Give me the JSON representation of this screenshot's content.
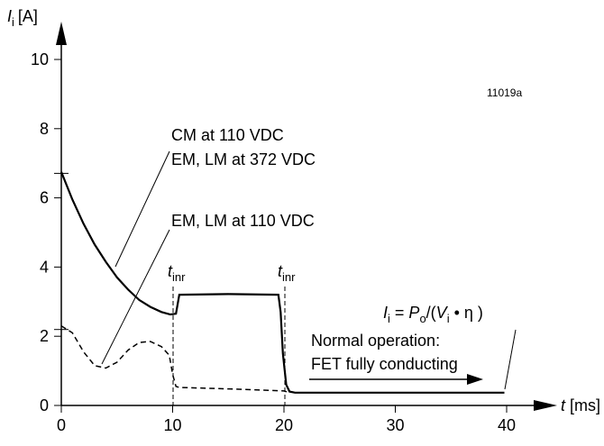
{
  "figure_id": "11019a",
  "chart_data": {
    "type": "line",
    "y_axis": {
      "symbol": "I",
      "subscript": "i",
      "unit": "[A]",
      "range": [
        0,
        10
      ],
      "ticks": [
        0,
        2,
        4,
        6,
        8,
        10
      ],
      "tick_labels": [
        "0",
        "2",
        "4",
        "6",
        "8",
        "10"
      ]
    },
    "x_axis": {
      "symbol": "t",
      "unit": "[ms]",
      "range": [
        0,
        40
      ],
      "ticks": [
        0,
        10,
        20,
        30,
        40
      ],
      "tick_labels": [
        "0",
        "10",
        "20",
        "30",
        "40"
      ]
    },
    "grid": false,
    "series": [
      {
        "style": "solid",
        "x": [
          0,
          1,
          2,
          3,
          4,
          5,
          6,
          7,
          8,
          9,
          9.8,
          10.3,
          10.6,
          15,
          19.5,
          19.7,
          19.9,
          20.2,
          20.5,
          21,
          25,
          30,
          35,
          39.8
        ],
        "y": [
          6.75,
          5.95,
          5.25,
          4.65,
          4.15,
          3.7,
          3.35,
          3.05,
          2.85,
          2.7,
          2.63,
          2.65,
          3.2,
          3.22,
          3.2,
          2.7,
          1.5,
          0.6,
          0.4,
          0.37,
          0.37,
          0.37,
          0.37,
          0.37
        ]
      },
      {
        "style": "dashed",
        "x": [
          0,
          1,
          2,
          3,
          4,
          5,
          6,
          7,
          8,
          9,
          9.7,
          10.0,
          10.3,
          10.6,
          15,
          20,
          20.5
        ],
        "y": [
          2.3,
          2.1,
          1.55,
          1.15,
          1.08,
          1.25,
          1.6,
          1.82,
          1.85,
          1.7,
          1.45,
          0.9,
          0.55,
          0.52,
          0.48,
          0.42,
          0.37
        ]
      }
    ],
    "annotations": {
      "cm_label_line1": "CM at 110 VDC",
      "cm_label_line2": "EM, LM at 372 VDC",
      "em_label": "EM, LM at 110 VDC",
      "t_inr_main": "t",
      "t_inr_sub": "inr",
      "normal_line1": "Normal operation:",
      "normal_line2": "FET fully conducting",
      "formula": {
        "I": "I",
        "I_sub": "i",
        "eq": " = ",
        "P": "P",
        "P_sub": "o",
        "open": "/(",
        "V": "V",
        "V_sub": "i",
        "dot": " • ",
        "eta": "η",
        "close": " )"
      }
    }
  }
}
